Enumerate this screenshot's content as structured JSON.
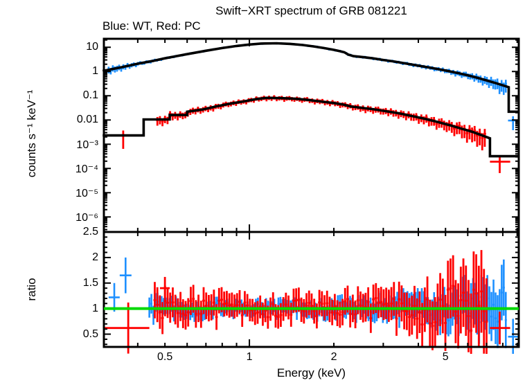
{
  "title": "Swift−XRT spectrum of GRB 081221",
  "subtitle": "Blue: WT, Red: PC",
  "colors": {
    "wt": "#1e90ff",
    "pc": "#ff0000",
    "model": "#000000",
    "ratio_line": "#00d900",
    "frame": "#000000",
    "text": "#000000",
    "background": "#ffffff"
  },
  "chart_data": {
    "type": "scatter",
    "title": "Swift−XRT spectrum of GRB 081221",
    "legend": "Blue: WT, Red: PC",
    "xlabel": "Energy (keV)",
    "xscale": "log",
    "xlim": [
      0.303,
      9.12
    ],
    "xticks": [
      {
        "v": 0.5,
        "label": "0.5"
      },
      {
        "v": 1,
        "label": "1"
      },
      {
        "v": 2,
        "label": "2"
      },
      {
        "v": 5,
        "label": "5"
      }
    ],
    "x_minor_ticks": [
      0.4,
      0.5,
      0.6,
      0.7,
      0.8,
      0.9,
      2,
      3,
      4,
      5,
      6,
      7,
      8,
      9
    ],
    "x_major_ticks": [
      1
    ],
    "jitter": [
      0.32,
      -0.58,
      0.85,
      -0.18,
      0.04,
      0.62,
      -0.78,
      0.41,
      -0.33,
      0.92,
      -0.55,
      0.12,
      0.48,
      -0.88,
      0.22,
      0.68,
      -0.12,
      -0.42,
      0.58,
      0.08,
      -0.68,
      0.38,
      0.88,
      -0.28,
      0.18,
      -0.82,
      0.52,
      -0.04,
      0.72,
      -0.48,
      0.32,
      -0.62,
      0.78,
      -0.08,
      0.42,
      -0.72,
      0.02,
      0.58,
      -0.22,
      0.88,
      -0.38,
      0.12,
      0.66,
      -0.52,
      0.28,
      -0.92,
      0.46,
      0.18,
      -0.64,
      0.36,
      0.74,
      -0.26,
      -0.06,
      0.54,
      -0.44,
      0.82,
      -0.16,
      0.26,
      -0.74,
      0.5
    ],
    "panels": {
      "spectrum": {
        "ylabel": "counts s⁻¹ keV⁻¹",
        "yscale": "log",
        "ylim": [
          2.4e-07,
          22.4
        ],
        "yticks": [
          {
            "v": 10,
            "label": "10"
          },
          {
            "v": 1,
            "label": "1"
          },
          {
            "v": 0.1,
            "label": "0.1"
          },
          {
            "v": 0.01,
            "label": "0.01"
          },
          {
            "v": 0.001,
            "label": "10⁻³"
          },
          {
            "v": 0.0001,
            "label": "10⁻⁴"
          },
          {
            "v": 1e-05,
            "label": "10⁻⁵"
          },
          {
            "v": 1e-06,
            "label": "10⁻⁶"
          }
        ],
        "wt": {
          "name": "WT",
          "model": [
            [
              0.3,
              1.05
            ],
            [
              0.35,
              1.5
            ],
            [
              0.4,
              2.1
            ],
            [
              0.45,
              2.7
            ],
            [
              0.5,
              3.5
            ],
            [
              0.6,
              5.2
            ],
            [
              0.7,
              7.2
            ],
            [
              0.8,
              9.3
            ],
            [
              0.9,
              11.3
            ],
            [
              1.0,
              13.0
            ],
            [
              1.1,
              14.2
            ],
            [
              1.25,
              14.6
            ],
            [
              1.4,
              13.8
            ],
            [
              1.55,
              12.4
            ],
            [
              1.7,
              10.8
            ],
            [
              1.85,
              9.2
            ],
            [
              2.0,
              7.8
            ],
            [
              2.1,
              6.9
            ],
            [
              2.18,
              6.2
            ],
            [
              2.25,
              5.0
            ],
            [
              2.35,
              4.3
            ],
            [
              2.55,
              3.9
            ],
            [
              2.75,
              3.5
            ],
            [
              3.0,
              3.0
            ],
            [
              3.3,
              2.55
            ],
            [
              3.6,
              2.15
            ],
            [
              4.0,
              1.75
            ],
            [
              4.5,
              1.38
            ],
            [
              5.0,
              1.1
            ],
            [
              5.5,
              0.88
            ],
            [
              6.0,
              0.7
            ],
            [
              6.5,
              0.55
            ],
            [
              7.0,
              0.43
            ],
            [
              7.5,
              0.34
            ],
            [
              8.0,
              0.27
            ],
            [
              8.4,
              0.225
            ],
            [
              8.4,
              0.022
            ],
            [
              9.1,
              0.022
            ]
          ],
          "err_rel": [
            [
              0.3,
              0.3
            ],
            [
              0.4,
              0.15
            ],
            [
              0.5,
              0.09
            ],
            [
              0.7,
              0.06
            ],
            [
              1,
              0.055
            ],
            [
              1.5,
              0.06
            ],
            [
              2,
              0.075
            ],
            [
              3,
              0.1
            ],
            [
              4,
              0.13
            ],
            [
              5,
              0.17
            ],
            [
              6,
              0.23
            ],
            [
              7,
              0.32
            ],
            [
              8,
              0.45
            ],
            [
              9,
              0.55
            ]
          ],
          "n": 190,
          "erange": [
            0.315,
            8.2
          ],
          "seed": [
            0,
            1
          ],
          "scatter": 0.6,
          "extras": [
            {
              "e": 8.7,
              "xlo": 8.35,
              "xhi": 9.05,
              "v": 0.0095,
              "rel": 0.5
            }
          ]
        },
        "pc": {
          "name": "PC",
          "model": [
            [
              0.3,
              0.0023
            ],
            [
              0.42,
              0.0023
            ],
            [
              0.42,
              0.0105
            ],
            [
              0.52,
              0.0105
            ],
            [
              0.52,
              0.016
            ],
            [
              0.6,
              0.016
            ],
            [
              0.6,
              0.022
            ],
            [
              0.68,
              0.027
            ],
            [
              0.76,
              0.036
            ],
            [
              0.85,
              0.047
            ],
            [
              0.95,
              0.058
            ],
            [
              1.05,
              0.072
            ],
            [
              1.15,
              0.082
            ],
            [
              1.3,
              0.08
            ],
            [
              1.45,
              0.075
            ],
            [
              1.6,
              0.068
            ],
            [
              1.8,
              0.058
            ],
            [
              2.0,
              0.05
            ],
            [
              2.15,
              0.044
            ],
            [
              2.3,
              0.036
            ],
            [
              2.5,
              0.032
            ],
            [
              2.75,
              0.028
            ],
            [
              3.0,
              0.024
            ],
            [
              3.4,
              0.019
            ],
            [
              3.8,
              0.0145
            ],
            [
              4.2,
              0.0113
            ],
            [
              4.7,
              0.0082
            ],
            [
              5.2,
              0.006
            ],
            [
              5.7,
              0.0044
            ],
            [
              6.2,
              0.0033
            ],
            [
              6.7,
              0.0024
            ],
            [
              7.2,
              0.00175
            ],
            [
              7.2,
              0.00032
            ],
            [
              9.1,
              0.00032
            ]
          ],
          "err_rel": [
            [
              0.35,
              0.55
            ],
            [
              0.5,
              0.3
            ],
            [
              0.7,
              0.22
            ],
            [
              1,
              0.18
            ],
            [
              1.5,
              0.18
            ],
            [
              2,
              0.2
            ],
            [
              3,
              0.25
            ],
            [
              4,
              0.3
            ],
            [
              5,
              0.38
            ],
            [
              6,
              0.5
            ],
            [
              7,
              0.6
            ]
          ],
          "n": 130,
          "erange": [
            0.47,
            6.9
          ],
          "seed": [
            23,
            1
          ],
          "scatter": 0.6,
          "extras": [
            {
              "e": 0.355,
              "xlo": 0.303,
              "xhi": 0.42,
              "v": 0.0023,
              "rel": 0.6
            },
            {
              "e": 7.8,
              "xlo": 7.2,
              "xhi": 8.5,
              "v": 0.00019,
              "rel": 0.55
            }
          ]
        }
      },
      "ratio": {
        "ylabel": "ratio",
        "yscale": "linear",
        "ylim": [
          0.25,
          2.5
        ],
        "reference_line": 1,
        "yticks": [
          {
            "v": 0.5,
            "label": "0.5"
          },
          {
            "v": 1,
            "label": "1"
          },
          {
            "v": 1.5,
            "label": "1.5"
          },
          {
            "v": 2,
            "label": "2"
          },
          {
            "v": 2.5,
            "label": "2.5"
          }
        ],
        "y_minor_step": 0.1,
        "wt": {
          "err": [
            [
              0.33,
              0.28
            ],
            [
              0.5,
              0.16
            ],
            [
              1,
              0.12
            ],
            [
              2,
              0.15
            ],
            [
              3,
              0.2
            ],
            [
              4,
              0.25
            ],
            [
              5,
              0.3
            ],
            [
              6,
              0.38
            ],
            [
              7,
              0.45
            ],
            [
              8,
              0.55
            ]
          ],
          "n": 175,
          "erange": [
            0.44,
            8.2
          ],
          "seed": [
            11,
            7
          ],
          "scatter": 0.85,
          "extras": [
            {
              "e": 0.33,
              "xlo": 0.315,
              "xhi": 0.345,
              "v": 1.22,
              "err": 0.28
            },
            {
              "e": 0.362,
              "xlo": 0.345,
              "xhi": 0.38,
              "v": 1.65,
              "err": 0.35
            },
            {
              "e": 8.7,
              "xlo": 8.35,
              "xhi": 9.05,
              "v": 0.45,
              "err": 0.35
            }
          ]
        },
        "pc": {
          "err": [
            [
              0.4,
              0.45
            ],
            [
              0.5,
              0.3
            ],
            [
              1,
              0.22
            ],
            [
              2,
              0.25
            ],
            [
              3,
              0.3
            ],
            [
              4,
              0.4
            ],
            [
              5,
              0.55
            ],
            [
              6,
              0.7
            ],
            [
              7,
              0.85
            ],
            [
              8,
              0.85
            ]
          ],
          "n": 130,
          "erange": [
            0.46,
            7.0
          ],
          "seed": [
            37,
            7
          ],
          "scatter": 0.8,
          "extras": [
            {
              "e": 0.37,
              "xlo": 0.303,
              "xhi": 0.44,
              "v": 0.62,
              "err": 0.5
            },
            {
              "e": 0.5,
              "xlo": 0.48,
              "xhi": 0.52,
              "v": 1.4,
              "err": 0.22
            },
            {
              "e": 7.8,
              "xlo": 7.2,
              "xhi": 8.5,
              "v": 0.62,
              "err": 0.32
            }
          ]
        }
      }
    }
  }
}
